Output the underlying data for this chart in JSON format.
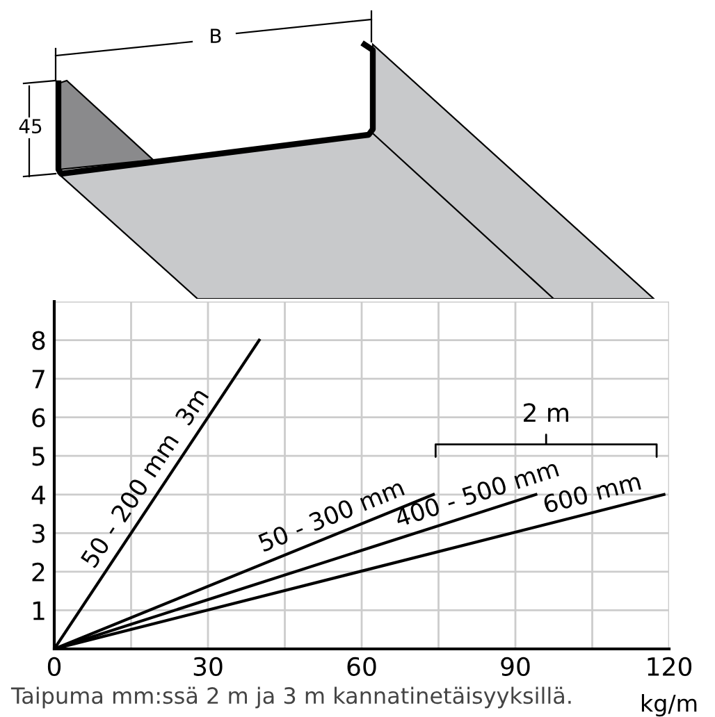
{
  "chart_data": {
    "type": "line",
    "xlabel": "kg/m",
    "series": [
      {
        "name": "50 - 200 mm  3m",
        "color": "#000000",
        "x": [
          0,
          40
        ],
        "values": [
          0,
          8
        ]
      },
      {
        "name": "50 - 300 mm",
        "color": "#000000",
        "x": [
          0,
          74
        ],
        "values": [
          0,
          4
        ]
      },
      {
        "name": "400 - 500 mm",
        "color": "#000000",
        "x": [
          0,
          94
        ],
        "values": [
          0,
          4
        ]
      },
      {
        "name": "600 mm",
        "color": "#000000",
        "x": [
          0,
          119
        ],
        "values": [
          0,
          4
        ]
      }
    ],
    "xlim": [
      0,
      120
    ],
    "ylim": [
      0,
      9
    ],
    "xticks": [
      0,
      {
        "value": 15,
        "label": null
      },
      30,
      {
        "value": 45,
        "label": null
      },
      60,
      {
        "value": 75,
        "label": null
      },
      90,
      {
        "value": 105,
        "label": null
      },
      120
    ],
    "yticks": [
      {
        "value": 0,
        "label": null
      },
      1,
      2,
      3,
      4,
      5,
      6,
      7,
      8,
      {
        "value": 9,
        "label": null
      }
    ],
    "grid": true,
    "marker": "none",
    "line_style": "solid",
    "annotations": [
      "2 m",
      "Taipuma mm:ssä 2 m ja 3 m kannatinetäisyyksillä.",
      "B",
      "45"
    ]
  }
}
